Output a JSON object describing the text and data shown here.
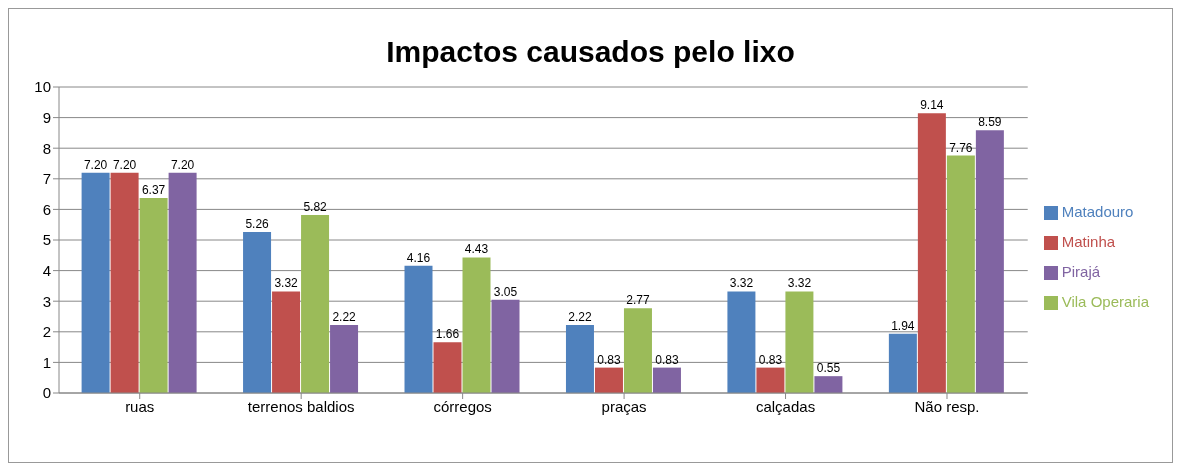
{
  "chart_data": {
    "type": "bar",
    "title": "Impactos causados pelo lixo",
    "categories": [
      "ruas",
      "terrenos baldios",
      "córregos",
      "praças",
      "calçadas",
      "Não resp."
    ],
    "series": [
      {
        "name": "Matadouro",
        "color": "#4f81bd",
        "values": [
          7.2,
          5.26,
          4.16,
          2.22,
          3.32,
          1.94
        ],
        "value_labels": [
          "7.20",
          "5.26",
          "4.16",
          "2.22",
          "3.32",
          "1.94"
        ]
      },
      {
        "name": "Matinha",
        "color": "#c0504d",
        "values": [
          7.2,
          3.32,
          1.66,
          0.83,
          0.83,
          9.14
        ],
        "value_labels": [
          "7.20",
          "3.32",
          "1.66",
          "0.83",
          "0.83",
          "9.14"
        ]
      },
      {
        "name": "Vila Operaria",
        "color": "#9bbb59",
        "values": [
          6.37,
          5.82,
          4.43,
          2.77,
          3.32,
          7.76
        ],
        "value_labels": [
          "6.37",
          "5.82",
          "4.43",
          "2.77",
          "3.32",
          "7.76"
        ]
      },
      {
        "name": "Pirajá",
        "color": "#8064a2",
        "values": [
          7.2,
          2.22,
          3.05,
          0.83,
          0.55,
          8.59
        ],
        "value_labels": [
          "7.20",
          "2.22",
          "3.05",
          "0.83",
          "0.55",
          "8.59"
        ]
      }
    ],
    "ylim": [
      0,
      10
    ],
    "yticks": [
      0,
      1,
      2,
      3,
      4,
      5,
      6,
      7,
      8,
      9,
      10
    ],
    "grid": "y",
    "legend": "right"
  }
}
